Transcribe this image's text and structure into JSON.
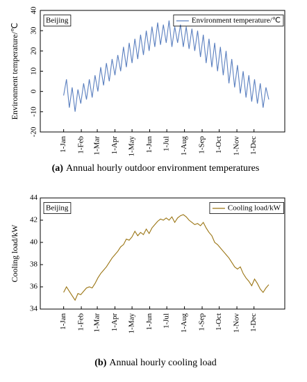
{
  "chart_data": [
    {
      "type": "line",
      "annotation": "Beijing",
      "y_label": "Environment temperature/℃",
      "caption_label": "(a)",
      "caption": "Annual hourly outdoor environment temperatures",
      "series": [
        {
          "name": "Environment temperature/℃",
          "color": "#5a7fbf",
          "values": [
            -2,
            6,
            -8,
            2,
            -10,
            1,
            -6,
            4,
            -4,
            6,
            -3,
            8,
            0,
            12,
            3,
            14,
            5,
            16,
            8,
            18,
            10,
            22,
            12,
            24,
            14,
            26,
            16,
            28,
            18,
            30,
            20,
            32,
            22,
            34,
            23,
            33,
            24,
            35,
            22,
            32,
            24,
            33,
            22,
            32,
            21,
            31,
            20,
            30,
            17,
            28,
            14,
            26,
            12,
            24,
            10,
            22,
            8,
            20,
            4,
            16,
            2,
            13,
            -1,
            10,
            -3,
            8,
            -5,
            6,
            -6,
            4,
            -8,
            2,
            -4
          ]
        }
      ],
      "x": [
        0,
        5,
        10,
        15,
        20,
        25,
        30,
        35,
        40,
        45,
        50,
        55,
        60,
        65,
        70,
        75,
        80,
        85,
        90,
        95,
        100,
        105,
        110,
        115,
        120,
        125,
        130,
        135,
        140,
        145,
        150,
        155,
        160,
        165,
        170,
        175,
        180,
        185,
        190,
        195,
        200,
        205,
        210,
        215,
        220,
        225,
        230,
        235,
        240,
        245,
        250,
        255,
        260,
        265,
        270,
        275,
        280,
        285,
        290,
        295,
        300,
        305,
        310,
        315,
        320,
        325,
        330,
        335,
        340,
        345,
        350,
        355,
        360
      ],
      "xlim": [
        -41,
        388
      ],
      "xticks": [
        {
          "value": 0,
          "label": "1-Jan"
        },
        {
          "value": 31,
          "label": "1-Feb"
        },
        {
          "value": 59,
          "label": "1-Mar"
        },
        {
          "value": 90,
          "label": "1-Apr"
        },
        {
          "value": 120,
          "label": "1-May"
        },
        {
          "value": 151,
          "label": "1-Jun"
        },
        {
          "value": 181,
          "label": "1-Jul"
        },
        {
          "value": 212,
          "label": "1-Aug"
        },
        {
          "value": 243,
          "label": "1-Sep"
        },
        {
          "value": 273,
          "label": "1-Oct"
        },
        {
          "value": 304,
          "label": "1-Nov"
        },
        {
          "value": 334,
          "label": "1-Dec"
        }
      ],
      "ylim": [
        -20,
        40
      ],
      "yticks": [
        -20,
        -10,
        0,
        10,
        20,
        30,
        40
      ],
      "legend": "upper right"
    },
    {
      "type": "line",
      "annotation": "Beijing",
      "y_label": "Cooling load/kW",
      "caption_label": "(b)",
      "caption": "Annual hourly cooling load",
      "series": [
        {
          "name": "Cooling load/kW",
          "color": "#9a7412",
          "values": [
            35.5,
            36,
            35.6,
            35.2,
            34.8,
            35.4,
            35.3,
            35.6,
            35.9,
            36.0,
            35.9,
            36.3,
            36.8,
            37.2,
            37.5,
            37.8,
            38.2,
            38.6,
            38.9,
            39.2,
            39.6,
            39.8,
            40.3,
            40.2,
            40.5,
            41.0,
            40.6,
            40.9,
            40.7,
            41.2,
            40.8,
            41.3,
            41.6,
            41.9,
            42.1,
            42.0,
            42.2,
            42.0,
            42.3,
            41.8,
            42.2,
            42.4,
            42.5,
            42.3,
            42.0,
            41.8,
            41.6,
            41.7,
            41.5,
            41.8,
            41.3,
            40.9,
            40.6,
            40.0,
            39.8,
            39.5,
            39.2,
            38.9,
            38.6,
            38.2,
            37.8,
            37.6,
            37.8,
            37.2,
            36.8,
            36.5,
            36.1,
            36.7,
            36.3,
            35.8,
            35.5,
            35.9,
            36.2
          ]
        }
      ],
      "x": [
        0,
        5,
        10,
        15,
        20,
        25,
        30,
        35,
        40,
        45,
        50,
        55,
        60,
        65,
        70,
        75,
        80,
        85,
        90,
        95,
        100,
        105,
        110,
        115,
        120,
        125,
        130,
        135,
        140,
        145,
        150,
        155,
        160,
        165,
        170,
        175,
        180,
        185,
        190,
        195,
        200,
        205,
        210,
        215,
        220,
        225,
        230,
        235,
        240,
        245,
        250,
        255,
        260,
        265,
        270,
        275,
        280,
        285,
        290,
        295,
        300,
        305,
        310,
        315,
        320,
        325,
        330,
        335,
        340,
        345,
        350,
        355,
        360
      ],
      "xlim": [
        -41,
        388
      ],
      "xticks": [
        {
          "value": 0,
          "label": "1-Jan"
        },
        {
          "value": 31,
          "label": "1-Feb"
        },
        {
          "value": 59,
          "label": "1-Mar"
        },
        {
          "value": 90,
          "label": "1-Apr"
        },
        {
          "value": 120,
          "label": "1-May"
        },
        {
          "value": 151,
          "label": "1-Jun"
        },
        {
          "value": 181,
          "label": "1-Jul"
        },
        {
          "value": 212,
          "label": "1-Aug"
        },
        {
          "value": 243,
          "label": "1-Sep"
        },
        {
          "value": 273,
          "label": "1-Oct"
        },
        {
          "value": 304,
          "label": "1-Nov"
        },
        {
          "value": 334,
          "label": "1-Dec"
        }
      ],
      "ylim": [
        34,
        44
      ],
      "yticks": [
        34,
        36,
        38,
        40,
        42,
        44
      ],
      "legend": "upper right"
    }
  ]
}
